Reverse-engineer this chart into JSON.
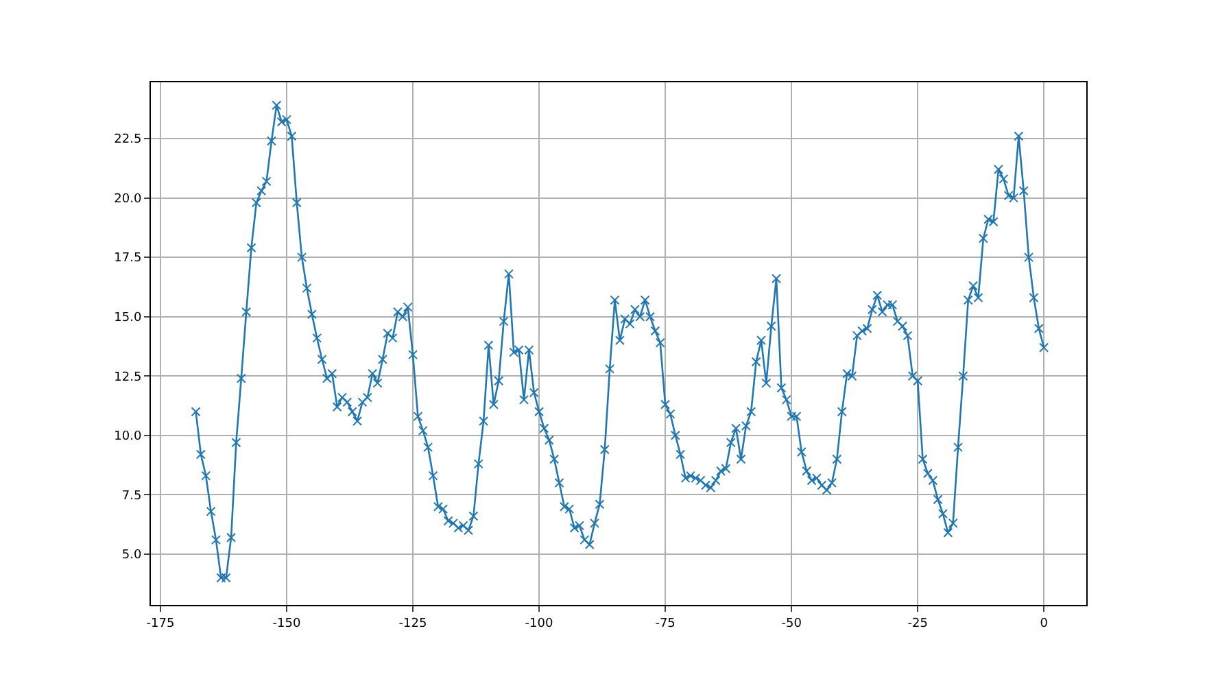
{
  "chart_data": {
    "type": "line",
    "x": [
      -168,
      -167,
      -166,
      -165,
      -164,
      -163,
      -162,
      -161,
      -160,
      -159,
      -158,
      -157,
      -156,
      -155,
      -154,
      -153,
      -152,
      -151,
      -150,
      -149,
      -148,
      -147,
      -146,
      -145,
      -144,
      -143,
      -142,
      -141,
      -140,
      -139,
      -138,
      -137,
      -136,
      -135,
      -134,
      -133,
      -132,
      -131,
      -130,
      -129,
      -128,
      -127,
      -126,
      -125,
      -124,
      -123,
      -122,
      -121,
      -120,
      -119,
      -118,
      -117,
      -116,
      -115,
      -114,
      -113,
      -112,
      -111,
      -110,
      -109,
      -108,
      -107,
      -106,
      -105,
      -104,
      -103,
      -102,
      -101,
      -100,
      -99,
      -98,
      -97,
      -96,
      -95,
      -94,
      -93,
      -92,
      -91,
      -90,
      -89,
      -88,
      -87,
      -86,
      -85,
      -84,
      -83,
      -82,
      -81,
      -80,
      -79,
      -78,
      -77,
      -76,
      -75,
      -74,
      -73,
      -72,
      -71,
      -70,
      -69,
      -68,
      -67,
      -66,
      -65,
      -64,
      -63,
      -62,
      -61,
      -60,
      -59,
      -58,
      -57,
      -56,
      -55,
      -54,
      -53,
      -52,
      -51,
      -50,
      -49,
      -48,
      -47,
      -46,
      -45,
      -44,
      -43,
      -42,
      -41,
      -40,
      -39,
      -38,
      -37,
      -36,
      -35,
      -34,
      -33,
      -32,
      -31,
      -30,
      -29,
      -28,
      -27,
      -26,
      -25,
      -24,
      -23,
      -22,
      -21,
      -20,
      -19,
      -18,
      -17,
      -16,
      -15,
      -14,
      -13,
      -12,
      -11,
      -10,
      -9,
      -8,
      -7,
      -6,
      -5,
      -4,
      -3,
      -2,
      -1,
      0
    ],
    "series": [
      {
        "color": "#1f77b4",
        "values": [
          11.0,
          9.2,
          8.3,
          6.8,
          5.6,
          4.0,
          4.0,
          5.7,
          9.7,
          12.4,
          15.2,
          17.9,
          19.8,
          20.3,
          20.7,
          22.4,
          23.9,
          23.2,
          23.3,
          22.6,
          19.8,
          17.5,
          16.2,
          15.1,
          14.1,
          13.2,
          12.4,
          12.6,
          11.2,
          11.6,
          11.4,
          11.0,
          10.6,
          11.4,
          11.6,
          12.6,
          12.2,
          13.2,
          14.3,
          14.1,
          15.2,
          15.0,
          15.4,
          13.4,
          10.8,
          10.2,
          9.5,
          8.3,
          7.0,
          6.9,
          6.4,
          6.3,
          6.1,
          6.2,
          6.0,
          6.6,
          8.8,
          10.6,
          13.8,
          11.3,
          12.3,
          14.8,
          16.8,
          13.5,
          13.6,
          11.5,
          13.6,
          11.8,
          11.0,
          10.3,
          9.8,
          9.0,
          8.0,
          7.0,
          6.9,
          6.1,
          6.2,
          5.6,
          5.4,
          6.3,
          7.1,
          9.4,
          12.8,
          15.7,
          14.0,
          14.9,
          14.7,
          15.3,
          15.0,
          15.7,
          15.0,
          14.4,
          13.9,
          11.3,
          10.9,
          10.0,
          9.2,
          8.2,
          8.3,
          8.2,
          8.1,
          7.9,
          7.8,
          8.1,
          8.5,
          8.6,
          9.7,
          10.3,
          9.0,
          10.4,
          11.0,
          13.1,
          14.0,
          12.2,
          14.6,
          16.6,
          12.0,
          11.5,
          10.8,
          10.8,
          9.3,
          8.5,
          8.1,
          8.2,
          7.9,
          7.7,
          8.0,
          9.0,
          11.0,
          12.6,
          12.5,
          14.2,
          14.4,
          14.5,
          15.3,
          15.9,
          15.2,
          15.5,
          15.5,
          14.8,
          14.6,
          14.2,
          12.5,
          12.3,
          9.0,
          8.4,
          8.1,
          7.3,
          6.7,
          5.9,
          6.3,
          9.5,
          12.5,
          15.7,
          16.3,
          15.8,
          18.3,
          19.1,
          19.0,
          21.2,
          20.8,
          20.1,
          20.0,
          22.6,
          20.3,
          17.5,
          15.8,
          14.5,
          13.7
        ]
      }
    ],
    "xlim": [
      -176.9,
      8.4
    ],
    "xticks": [
      -175,
      -150,
      -125,
      -100,
      -75,
      -50,
      -25,
      0
    ],
    "ylim": [
      2.86,
      24.87
    ],
    "yticks": [
      {
        "value": 5,
        "label": "5.0"
      },
      {
        "value": 7.5,
        "label": "7.5"
      },
      {
        "value": 10,
        "label": "10.0"
      },
      {
        "value": 12.5,
        "label": "12.5"
      },
      {
        "value": 15,
        "label": "15.0"
      },
      {
        "value": 17.5,
        "label": "17.5"
      },
      {
        "value": 20,
        "label": "20.0"
      },
      {
        "value": 22.5,
        "label": "22.5"
      }
    ],
    "grid": true,
    "legend": false,
    "marker": "cross",
    "line_style": "solid"
  }
}
